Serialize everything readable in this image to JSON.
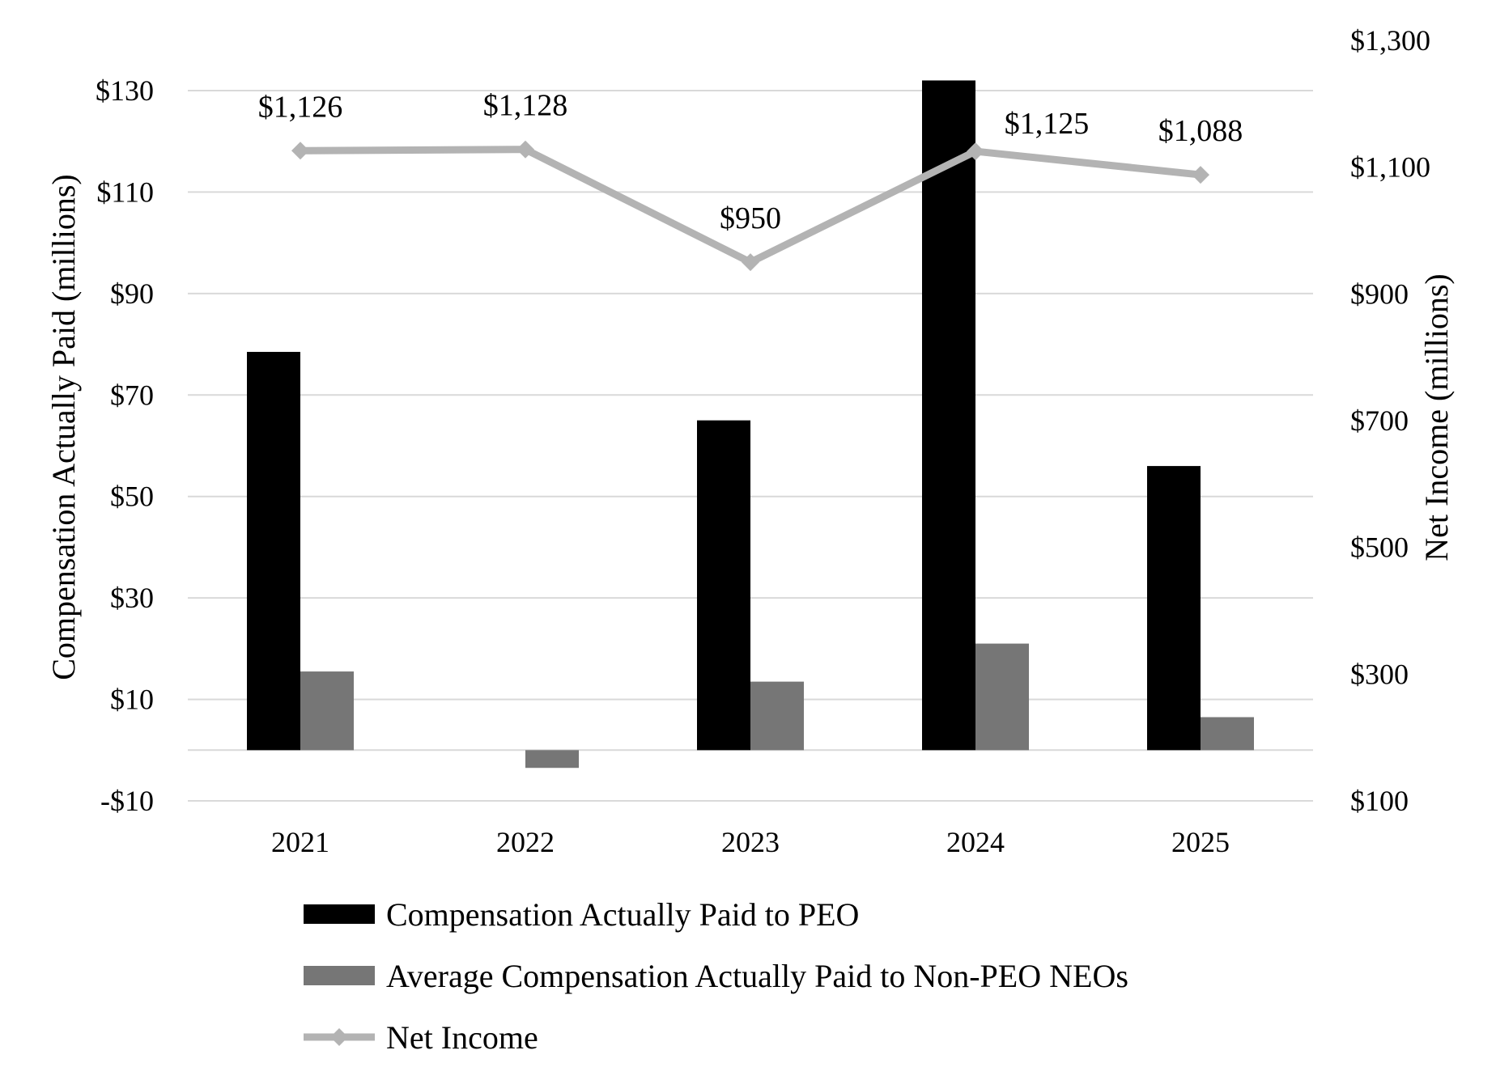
{
  "chart_data": {
    "type": "bar",
    "categories": [
      "2021",
      "2022",
      "2023",
      "2024",
      "2025"
    ],
    "series": [
      {
        "name": "Compensation Actually Paid to PEO",
        "axis": "left",
        "type": "bar",
        "color": "#000000",
        "values": [
          78.5,
          0,
          65,
          132,
          56
        ]
      },
      {
        "name": "Average Compensation Actually Paid to Non-PEO NEOs",
        "axis": "left",
        "type": "bar",
        "color": "#767676",
        "values": [
          15.5,
          -3.5,
          13.5,
          21,
          6.5
        ]
      },
      {
        "name": "Net Income",
        "axis": "right",
        "type": "line",
        "color": "#b3b3b3",
        "values": [
          1126,
          1128,
          950,
          1125,
          1088
        ],
        "labels": [
          "$1,126",
          "$1,128",
          "$950",
          "$1,125",
          "$1,088"
        ]
      }
    ],
    "y_left": {
      "label": "Compensation Actually Paid (millions)",
      "range": [
        -10,
        130
      ],
      "ticks": [
        -10,
        10,
        30,
        50,
        70,
        90,
        110,
        130
      ],
      "tick_labels": [
        "-$10",
        "$10",
        "$30",
        "$50",
        "$70",
        "$90",
        "$110",
        "$130"
      ]
    },
    "y_right": {
      "label": "Net Income (millions)",
      "range": [
        100,
        1300
      ],
      "ticks": [
        100,
        300,
        500,
        700,
        900,
        1100,
        1300
      ],
      "tick_labels": [
        "$100",
        "$300",
        "$500",
        "$700",
        "$900",
        "$1,100",
        "$1,300"
      ]
    },
    "grid": true,
    "legend_position": "bottom"
  }
}
